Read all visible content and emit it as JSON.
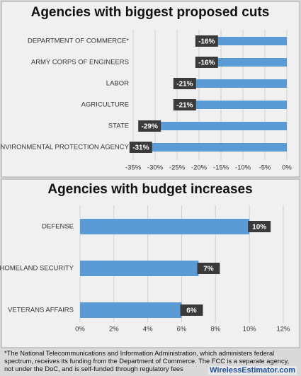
{
  "chart_data": [
    {
      "type": "bar",
      "title": "Agencies with biggest proposed cuts",
      "categories": [
        "DEPARTMENT OF COMMERCE*",
        "ARMY CORPS OF ENGINEERS",
        "LABOR",
        "AGRICULTURE",
        "STATE",
        "ENVIRONMENTAL PROTECTION AGENCY"
      ],
      "values": [
        -16,
        -16,
        -21,
        -21,
        -29,
        -31
      ],
      "value_labels": [
        "-16%",
        "-16%",
        "-21%",
        "-21%",
        "-29%",
        "-31%"
      ],
      "color": "#5b9bd5",
      "xlim": [
        -35,
        0
      ],
      "xticks": [
        {
          "value": -35,
          "label": "-35%"
        },
        {
          "value": -30,
          "label": "-30%"
        },
        {
          "value": -25,
          "label": "-25%"
        },
        {
          "value": -20,
          "label": "-20%"
        },
        {
          "value": -15,
          "label": "-15%"
        },
        {
          "value": -10,
          "label": "-10%"
        },
        {
          "value": -5,
          "label": "-5%"
        },
        {
          "value": 0,
          "label": "0%"
        }
      ],
      "grid": true
    },
    {
      "type": "bar",
      "title": "Agencies with budget increases",
      "categories": [
        "DEFENSE",
        "HOMELAND SECURITY",
        "VETERANS AFFAIRS"
      ],
      "values": [
        10,
        7,
        6
      ],
      "value_labels": [
        "10%",
        "7%",
        "6%"
      ],
      "color": "#5b9bd5",
      "xlim": [
        0,
        12
      ],
      "xticks": [
        {
          "value": 0,
          "label": "0%"
        },
        {
          "value": 2,
          "label": "2%"
        },
        {
          "value": 4,
          "label": "4%"
        },
        {
          "value": 6,
          "label": "6%"
        },
        {
          "value": 8,
          "label": "8%"
        },
        {
          "value": 10,
          "label": "10%"
        },
        {
          "value": 12,
          "label": "12%"
        }
      ],
      "grid": true
    }
  ],
  "footnote": "*The National Telecommunications and Information Administration, which administers federal spectrum, receives its funding from the Department of Commerce. The FCC is a separate agency, not under the DoC, and is self-funded through regulatory fees",
  "source": "WirelessEstimator.com"
}
